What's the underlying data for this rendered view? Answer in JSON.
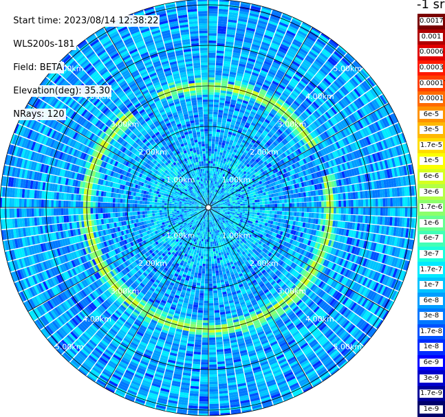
{
  "header": {
    "start_time": "Start time: 2023/08/14 12:38:22",
    "instrument": "WLS200s-181",
    "field": "Field: BETA",
    "elevation": "Elevation(deg): 35.30",
    "nrays": "NRays: 120"
  },
  "colorbar": {
    "title": "-1 sr",
    "levels": [
      {
        "label": "0.0017",
        "color": "#7a0000"
      },
      {
        "label": "0.001",
        "color": "#b00000"
      },
      {
        "label": "0.0006",
        "color": "#e00000"
      },
      {
        "label": "0.0003",
        "color": "#ff1a00"
      },
      {
        "label": "0.00017",
        "color": "#ff3f00"
      },
      {
        "label": "0.0001",
        "color": "#ff6a00"
      },
      {
        "label": "6e-5",
        "color": "#ff9200"
      },
      {
        "label": "3e-5",
        "color": "#ffb800"
      },
      {
        "label": "1.7e-5",
        "color": "#ffdc00"
      },
      {
        "label": "1e-5",
        "color": "#fbff00"
      },
      {
        "label": "6e-6",
        "color": "#d6ff1f"
      },
      {
        "label": "3e-6",
        "color": "#b2ff45"
      },
      {
        "label": "1.7e-6",
        "color": "#8cff6b"
      },
      {
        "label": "1e-6",
        "color": "#66ff91"
      },
      {
        "label": "6e-7",
        "color": "#41ffb6"
      },
      {
        "label": "3e-7",
        "color": "#1affdc"
      },
      {
        "label": "1.7e-7",
        "color": "#00eaff"
      },
      {
        "label": "1e-7",
        "color": "#00c4ff"
      },
      {
        "label": "6e-8",
        "color": "#009eff"
      },
      {
        "label": "3e-8",
        "color": "#0078ff"
      },
      {
        "label": "1.7e-8",
        "color": "#0052ff"
      },
      {
        "label": "1e-8",
        "color": "#002cff"
      },
      {
        "label": "6e-9",
        "color": "#0000ff"
      },
      {
        "label": "3e-9",
        "color": "#0000cc"
      },
      {
        "label": "1.7e-9",
        "color": "#000099"
      },
      {
        "label": "1e-9",
        "color": "#00006b"
      }
    ]
  },
  "chart_data": {
    "type": "heatmap",
    "projection": "polar",
    "field": "BETA",
    "elevation_deg": 35.3,
    "n_rays": 120,
    "range_ring_labels": [
      "1.00km",
      "2.00km",
      "3.00km",
      "4.00km",
      "5.00km"
    ],
    "range_rings_km": [
      1,
      2,
      3,
      4,
      5
    ],
    "max_range_km": 5.0,
    "color_scale": "log",
    "color_range": [
      1e-09,
      0.0017
    ],
    "features": {
      "background_beta": "3e-8 to 1.7e-7",
      "enhanced_ring_range_km": 3.0,
      "enhanced_ring_beta": "1e-6 to 1e-5"
    }
  }
}
